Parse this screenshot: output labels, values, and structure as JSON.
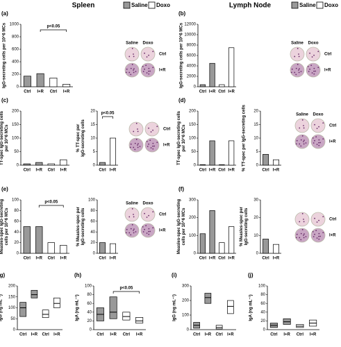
{
  "headers": [
    {
      "title": "Spleen",
      "legend": [
        "Saline",
        "Doxo"
      ],
      "colors": [
        "#999999",
        "#ffffff"
      ]
    },
    {
      "title": "Lymph Node",
      "legend": [
        "Saline",
        "Doxo"
      ],
      "colors": [
        "#999999",
        "#ffffff"
      ]
    }
  ],
  "chart_data": [
    {
      "type": "bar",
      "label": "(a)",
      "ylabel": [
        "IgG-secreting cells per 10^6 MCs"
      ],
      "categories": [
        "Ctrl",
        "I+R",
        "Ctrl",
        "I+R"
      ],
      "values": [
        170,
        210,
        140,
        40
      ],
      "colors": [
        "#999999",
        "#999999",
        "#ffffff",
        "#ffffff"
      ],
      "ylim": [
        0,
        1000
      ],
      "yticks": [
        0,
        200,
        400,
        600,
        800,
        1000
      ],
      "annotation": "p<0.05",
      "dish_columns": [
        "Saline",
        "Doxo"
      ],
      "dish_rows": [
        "Ctrl",
        "I+R"
      ]
    },
    {
      "type": "bar",
      "label": "(b)",
      "ylabel": [
        "IgG-secreting cells per 10^6 MCs"
      ],
      "categories": [
        "Ctrl",
        "I+R",
        "Ctrl",
        "I+R"
      ],
      "values": [
        400,
        4500,
        400,
        7500
      ],
      "colors": [
        "#999999",
        "#999999",
        "#ffffff",
        "#ffffff"
      ],
      "ylim": [
        0,
        12000
      ],
      "yticks": [
        0,
        2000,
        4000,
        6000,
        8000,
        10000,
        12000
      ],
      "dish_columns": [
        "Saline",
        "Doxo"
      ],
      "dish_rows": [
        "Ctrl",
        "I+R"
      ]
    },
    {
      "type": "bar",
      "label": "(c)",
      "ylabel": [
        "TT-spec IgG-secreting cells",
        "per 10^6 MCs"
      ],
      "categories": [
        "Ctrl",
        "I+R",
        "Ctrl",
        "I+R"
      ],
      "values": [
        5,
        10,
        5,
        20
      ],
      "colors": [
        "#999999",
        "#999999",
        "#ffffff",
        "#ffffff"
      ],
      "ylim": [
        0,
        200
      ],
      "yticks": [
        0,
        50,
        100,
        150,
        200
      ]
    },
    {
      "type": "bar",
      "ylabel": [
        "% TT-spec per",
        "IgG-secreting cells"
      ],
      "categories": [
        "Ctrl",
        "I+R"
      ],
      "values": [
        1,
        10
      ],
      "colors": [
        "#999999",
        "#ffffff"
      ],
      "ylim": [
        0,
        20
      ],
      "yticks": [
        0,
        5,
        10,
        15,
        20
      ],
      "annotation": "p<0.05",
      "dish_rows": [
        "Ctrl",
        "I+R"
      ]
    },
    {
      "type": "bar",
      "label": "(d)",
      "ylabel": [
        "TT-spec IgG-secreting cells",
        "per 10^6 MCs"
      ],
      "categories": [
        "Ctrl",
        "I+R",
        "Ctrl",
        "I+R"
      ],
      "values": [
        2,
        90,
        2,
        90
      ],
      "colors": [
        "#999999",
        "#999999",
        "#ffffff",
        "#ffffff"
      ],
      "ylim": [
        0,
        200
      ],
      "yticks": [
        0,
        50,
        100,
        150,
        200
      ]
    },
    {
      "type": "bar",
      "ylabel": [
        "% TT-spec per IgG-secreting cells"
      ],
      "categories": [
        "Ctrl",
        "I+R"
      ],
      "values": [
        4,
        2
      ],
      "colors": [
        "#999999",
        "#ffffff"
      ],
      "ylim": [
        0,
        20
      ],
      "yticks": [
        0,
        5,
        10,
        15,
        20
      ],
      "dish_columns": [
        "Saline",
        "Doxo"
      ],
      "dish_rows": [
        "Ctrl",
        "I+R"
      ]
    },
    {
      "type": "bar",
      "label": "(e)",
      "ylabel": [
        "Measles-spec IgG-secreting",
        "cells per 10^6 MCs"
      ],
      "categories": [
        "Ctrl",
        "I+R",
        "Ctrl",
        "I+R"
      ],
      "values": [
        50,
        50,
        20,
        15
      ],
      "colors": [
        "#999999",
        "#999999",
        "#ffffff",
        "#ffffff"
      ],
      "ylim": [
        0,
        100
      ],
      "yticks": [
        0,
        20,
        40,
        60,
        80,
        100
      ],
      "annotation": "p<0.05"
    },
    {
      "type": "bar",
      "ylabel": [
        "% Measles-spec per",
        "IgG-secreting cells"
      ],
      "categories": [
        "Ctrl",
        "I+R"
      ],
      "values": [
        20,
        18
      ],
      "colors": [
        "#999999",
        "#ffffff"
      ],
      "ylim": [
        0,
        100
      ],
      "yticks": [
        0,
        20,
        40,
        60,
        80,
        100
      ],
      "dish_columns": [
        "Saline",
        "Doxo"
      ],
      "dish_rows": [
        "Ctrl",
        "I+R"
      ]
    },
    {
      "type": "bar",
      "label": "(f)",
      "ylabel": [
        "Measles-spec IgG-secreting",
        "cells per 10^6 MCs"
      ],
      "categories": [
        "Ctrl",
        "I+R",
        "Ctrl",
        "I+R"
      ],
      "values": [
        110,
        240,
        60,
        150
      ],
      "colors": [
        "#999999",
        "#999999",
        "#ffffff",
        "#ffffff"
      ],
      "ylim": [
        0,
        300
      ],
      "yticks": [
        0,
        100,
        200,
        300
      ]
    },
    {
      "type": "bar",
      "ylabel": [
        "% Measles-spec per",
        "IgG-secreting cells"
      ],
      "categories": [
        "Ctrl",
        "I+R"
      ],
      "values": [
        8,
        5
      ],
      "colors": [
        "#999999",
        "#ffffff"
      ],
      "ylim": [
        0,
        30
      ],
      "yticks": [
        0,
        10,
        20,
        30
      ],
      "dish_rows": [
        "Ctrl",
        "I+R"
      ]
    },
    {
      "type": "box",
      "label": "(g)",
      "ylabel": [
        "IgG (ng mL⁻¹)"
      ],
      "categories": [
        "Ctrl",
        "I+R",
        "Ctrl",
        "I+R"
      ],
      "q1": [
        60,
        145,
        55,
        100
      ],
      "values": [
        100,
        160,
        70,
        120
      ],
      "q3": [
        125,
        180,
        90,
        145
      ],
      "colors": [
        "#999999",
        "#999999",
        "#ffffff",
        "#ffffff"
      ],
      "ylim": [
        0,
        200
      ],
      "yticks": [
        0,
        50,
        100,
        150,
        200
      ]
    },
    {
      "type": "box",
      "label": "(h)",
      "ylabel": [
        "IgA (ng mL⁻¹)"
      ],
      "categories": [
        "Ctrl",
        "I+R",
        "Ctrl",
        "I+R"
      ],
      "q1": [
        20,
        25,
        22,
        15
      ],
      "values": [
        35,
        40,
        30,
        20
      ],
      "q3": [
        50,
        75,
        40,
        28
      ],
      "colors": [
        "#999999",
        "#999999",
        "#ffffff",
        "#ffffff"
      ],
      "ylim": [
        0,
        100
      ],
      "yticks": [
        0,
        20,
        40,
        60,
        80,
        100
      ],
      "annotation": "p<0.05"
    },
    {
      "type": "box",
      "label": "(i)",
      "ylabel": [
        "IgG (ng mL⁻¹)"
      ],
      "categories": [
        "Ctrl",
        "I+R",
        "Ctrl",
        "I+R"
      ],
      "q1": [
        10,
        180,
        5,
        110
      ],
      "values": [
        30,
        220,
        15,
        160
      ],
      "q3": [
        50,
        250,
        30,
        200
      ],
      "colors": [
        "#999999",
        "#999999",
        "#ffffff",
        "#ffffff"
      ],
      "ylim": [
        0,
        300
      ],
      "yticks": [
        0,
        100,
        200,
        300
      ]
    },
    {
      "type": "box",
      "label": "(j)",
      "ylabel": [
        "IgA (ng mL⁻¹)"
      ],
      "categories": [
        "Ctrl",
        "I+R",
        "Ctrl",
        "I+R"
      ],
      "q1": [
        5,
        12,
        5,
        8
      ],
      "values": [
        10,
        18,
        8,
        15
      ],
      "q3": [
        15,
        25,
        12,
        22
      ],
      "colors": [
        "#999999",
        "#999999",
        "#ffffff",
        "#ffffff"
      ],
      "ylim": [
        0,
        100
      ],
      "yticks": [
        0,
        20,
        40,
        60,
        80,
        100
      ]
    }
  ]
}
